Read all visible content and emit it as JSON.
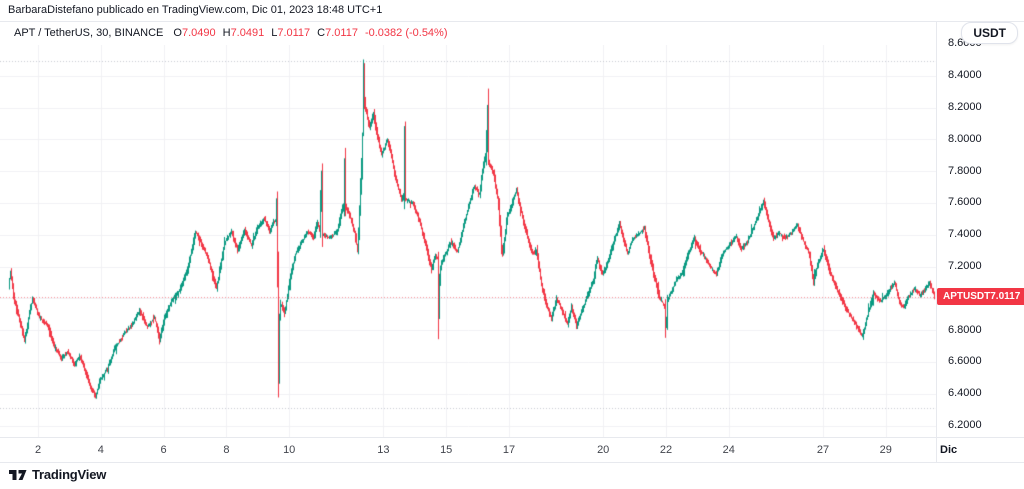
{
  "attribution": {
    "text": "BarbaraDistefano publicado en TradingView.com, Dic 01, 2023 18:48 UTC+1"
  },
  "header": {
    "symbol_title": "APT / TetherUS, 30, BINANCE",
    "ohlc": [
      {
        "label": "O",
        "value": "7.0490"
      },
      {
        "label": "H",
        "value": "7.0491"
      },
      {
        "label": "L",
        "value": "7.0117"
      },
      {
        "label": "C",
        "value": "7.0117"
      }
    ],
    "change": "-0.0382 (-0.54%)"
  },
  "toolbar": {
    "currency_button": "USDT"
  },
  "price_tag": {
    "symbol": "APTUSDT",
    "value": "7.0117"
  },
  "footer": {
    "brand": "TradingView"
  },
  "colors": {
    "up": "#089981",
    "down": "#f23645",
    "accent_red": "#f23645",
    "grid": "#f0f1f4",
    "range_dotted": "#c6c9d0",
    "text": "#131722"
  },
  "chart_data": {
    "type": "candlestick",
    "title": "APT / TetherUS",
    "interval": "30",
    "exchange": "BINANCE",
    "ohlc": {
      "open": 7.049,
      "high": 7.0491,
      "low": 7.0117,
      "close": 7.0117,
      "change": -0.0382,
      "change_pct": "-0.54%"
    },
    "current_price": 7.0117,
    "range_high_line": 8.49,
    "range_low_line": 6.31,
    "price_axis": {
      "min": 6.2,
      "max": 8.6,
      "step": 0.2,
      "decimals": 4
    },
    "time_axis": {
      "ticks": [
        {
          "day": 2,
          "label": "2"
        },
        {
          "day": 4,
          "label": "4"
        },
        {
          "day": 6,
          "label": "6"
        },
        {
          "day": 8,
          "label": "8"
        },
        {
          "day": 10,
          "label": "10"
        },
        {
          "day": 13,
          "label": "13"
        },
        {
          "day": 15,
          "label": "15"
        },
        {
          "day": 17,
          "label": "17"
        },
        {
          "day": 20,
          "label": "20"
        },
        {
          "day": 22,
          "label": "22"
        },
        {
          "day": 24,
          "label": "24"
        },
        {
          "day": 27,
          "label": "27"
        },
        {
          "day": 29,
          "label": "29"
        },
        {
          "day": 31,
          "label": "Dic",
          "bold": true
        }
      ]
    },
    "series_waypoints": [
      [
        1.04,
        7.03
      ],
      [
        1.14,
        7.17
      ],
      [
        1.27,
        6.98
      ],
      [
        1.59,
        6.74
      ],
      [
        1.84,
        7.0
      ],
      [
        2.06,
        6.88
      ],
      [
        2.32,
        6.83
      ],
      [
        2.54,
        6.7
      ],
      [
        2.76,
        6.62
      ],
      [
        2.96,
        6.67
      ],
      [
        3.18,
        6.58
      ],
      [
        3.34,
        6.64
      ],
      [
        3.59,
        6.5
      ],
      [
        3.75,
        6.42
      ],
      [
        3.85,
        6.38
      ],
      [
        3.97,
        6.48
      ],
      [
        4.23,
        6.56
      ],
      [
        4.45,
        6.68
      ],
      [
        4.77,
        6.78
      ],
      [
        4.99,
        6.83
      ],
      [
        5.25,
        6.92
      ],
      [
        5.5,
        6.82
      ],
      [
        5.73,
        6.88
      ],
      [
        5.89,
        6.73
      ],
      [
        6.04,
        6.88
      ],
      [
        6.27,
        6.98
      ],
      [
        6.52,
        7.05
      ],
      [
        6.78,
        7.18
      ],
      [
        7.03,
        7.42
      ],
      [
        7.25,
        7.33
      ],
      [
        7.48,
        7.22
      ],
      [
        7.7,
        7.06
      ],
      [
        7.95,
        7.35
      ],
      [
        8.18,
        7.42
      ],
      [
        8.37,
        7.3
      ],
      [
        8.59,
        7.43
      ],
      [
        8.82,
        7.33
      ],
      [
        9.01,
        7.45
      ],
      [
        9.23,
        7.5
      ],
      [
        9.39,
        7.42
      ],
      [
        9.52,
        7.48
      ],
      [
        9.6,
        7.5
      ],
      [
        9.63,
        7.74
      ],
      [
        9.665,
        6.3
      ],
      [
        9.7,
        6.88
      ],
      [
        9.75,
        6.97
      ],
      [
        9.87,
        6.9
      ],
      [
        10.03,
        7.12
      ],
      [
        10.22,
        7.28
      ],
      [
        10.41,
        7.35
      ],
      [
        10.6,
        7.42
      ],
      [
        10.79,
        7.38
      ],
      [
        10.92,
        7.48
      ],
      [
        11.0,
        7.42
      ],
      [
        11.035,
        7.9
      ],
      [
        11.07,
        7.4
      ],
      [
        11.3,
        7.38
      ],
      [
        11.55,
        7.42
      ],
      [
        11.75,
        7.6
      ],
      [
        11.78,
        7.85
      ],
      [
        11.81,
        7.58
      ],
      [
        11.94,
        7.52
      ],
      [
        12.1,
        7.42
      ],
      [
        12.19,
        7.3
      ],
      [
        12.345,
        7.95
      ],
      [
        12.38,
        8.46
      ],
      [
        12.42,
        8.22
      ],
      [
        12.57,
        8.08
      ],
      [
        12.7,
        8.16
      ],
      [
        12.83,
        8.02
      ],
      [
        12.96,
        7.9
      ],
      [
        13.15,
        8.0
      ],
      [
        13.27,
        7.89
      ],
      [
        13.43,
        7.73
      ],
      [
        13.6,
        7.62
      ],
      [
        13.66,
        7.65
      ],
      [
        13.69,
        8.02
      ],
      [
        13.72,
        7.62
      ],
      [
        13.94,
        7.6
      ],
      [
        14.16,
        7.49
      ],
      [
        14.39,
        7.31
      ],
      [
        14.55,
        7.18
      ],
      [
        14.67,
        7.27
      ],
      [
        14.74,
        7.25
      ],
      [
        14.775,
        6.82
      ],
      [
        14.81,
        7.18
      ],
      [
        14.86,
        7.22
      ],
      [
        15.02,
        7.29
      ],
      [
        15.18,
        7.36
      ],
      [
        15.37,
        7.29
      ],
      [
        15.56,
        7.45
      ],
      [
        15.75,
        7.59
      ],
      [
        15.91,
        7.71
      ],
      [
        16.07,
        7.65
      ],
      [
        16.2,
        7.84
      ],
      [
        16.29,
        7.92
      ],
      [
        16.325,
        8.27
      ],
      [
        16.36,
        7.86
      ],
      [
        16.52,
        7.79
      ],
      [
        16.68,
        7.59
      ],
      [
        16.8,
        7.26
      ],
      [
        16.96,
        7.51
      ],
      [
        17.12,
        7.6
      ],
      [
        17.25,
        7.68
      ],
      [
        17.41,
        7.54
      ],
      [
        17.6,
        7.39
      ],
      [
        17.76,
        7.28
      ],
      [
        17.89,
        7.3
      ],
      [
        18.05,
        7.09
      ],
      [
        18.21,
        6.95
      ],
      [
        18.37,
        6.87
      ],
      [
        18.53,
        7.0
      ],
      [
        18.69,
        6.93
      ],
      [
        18.88,
        6.84
      ],
      [
        19.01,
        6.95
      ],
      [
        19.17,
        6.82
      ],
      [
        19.32,
        6.91
      ],
      [
        19.52,
        7.02
      ],
      [
        19.71,
        7.12
      ],
      [
        19.83,
        7.25
      ],
      [
        19.99,
        7.15
      ],
      [
        20.15,
        7.22
      ],
      [
        20.34,
        7.35
      ],
      [
        20.54,
        7.47
      ],
      [
        20.63,
        7.39
      ],
      [
        20.79,
        7.28
      ],
      [
        20.95,
        7.37
      ],
      [
        21.11,
        7.4
      ],
      [
        21.33,
        7.44
      ],
      [
        21.49,
        7.27
      ],
      [
        21.65,
        7.13
      ],
      [
        21.81,
        7.0
      ],
      [
        21.98,
        6.95
      ],
      [
        22.01,
        6.76
      ],
      [
        22.06,
        6.98
      ],
      [
        22.16,
        7.03
      ],
      [
        22.35,
        7.12
      ],
      [
        22.54,
        7.16
      ],
      [
        22.76,
        7.3
      ],
      [
        22.92,
        7.38
      ],
      [
        23.08,
        7.31
      ],
      [
        23.31,
        7.24
      ],
      [
        23.5,
        7.18
      ],
      [
        23.62,
        7.15
      ],
      [
        23.81,
        7.28
      ],
      [
        24.04,
        7.34
      ],
      [
        24.26,
        7.39
      ],
      [
        24.42,
        7.31
      ],
      [
        24.61,
        7.36
      ],
      [
        24.77,
        7.43
      ],
      [
        24.93,
        7.51
      ],
      [
        25.12,
        7.61
      ],
      [
        25.28,
        7.48
      ],
      [
        25.44,
        7.38
      ],
      [
        25.63,
        7.41
      ],
      [
        25.82,
        7.38
      ],
      [
        26.01,
        7.41
      ],
      [
        26.2,
        7.46
      ],
      [
        26.39,
        7.36
      ],
      [
        26.58,
        7.28
      ],
      [
        26.71,
        7.11
      ],
      [
        26.87,
        7.23
      ],
      [
        27.03,
        7.31
      ],
      [
        27.22,
        7.18
      ],
      [
        27.41,
        7.08
      ],
      [
        27.57,
        7.01
      ],
      [
        27.76,
        6.93
      ],
      [
        27.95,
        6.87
      ],
      [
        28.11,
        6.82
      ],
      [
        28.27,
        6.76
      ],
      [
        28.43,
        6.89
      ],
      [
        28.62,
        7.03
      ],
      [
        28.81,
        6.98
      ],
      [
        29.0,
        7.01
      ],
      [
        29.16,
        7.06
      ],
      [
        29.29,
        7.1
      ],
      [
        29.45,
        6.98
      ],
      [
        29.58,
        6.94
      ],
      [
        29.74,
        7.01
      ],
      [
        29.93,
        7.06
      ],
      [
        30.12,
        7.02
      ],
      [
        30.28,
        7.06
      ],
      [
        30.41,
        7.1
      ],
      [
        30.56,
        7.0117
      ]
    ]
  }
}
